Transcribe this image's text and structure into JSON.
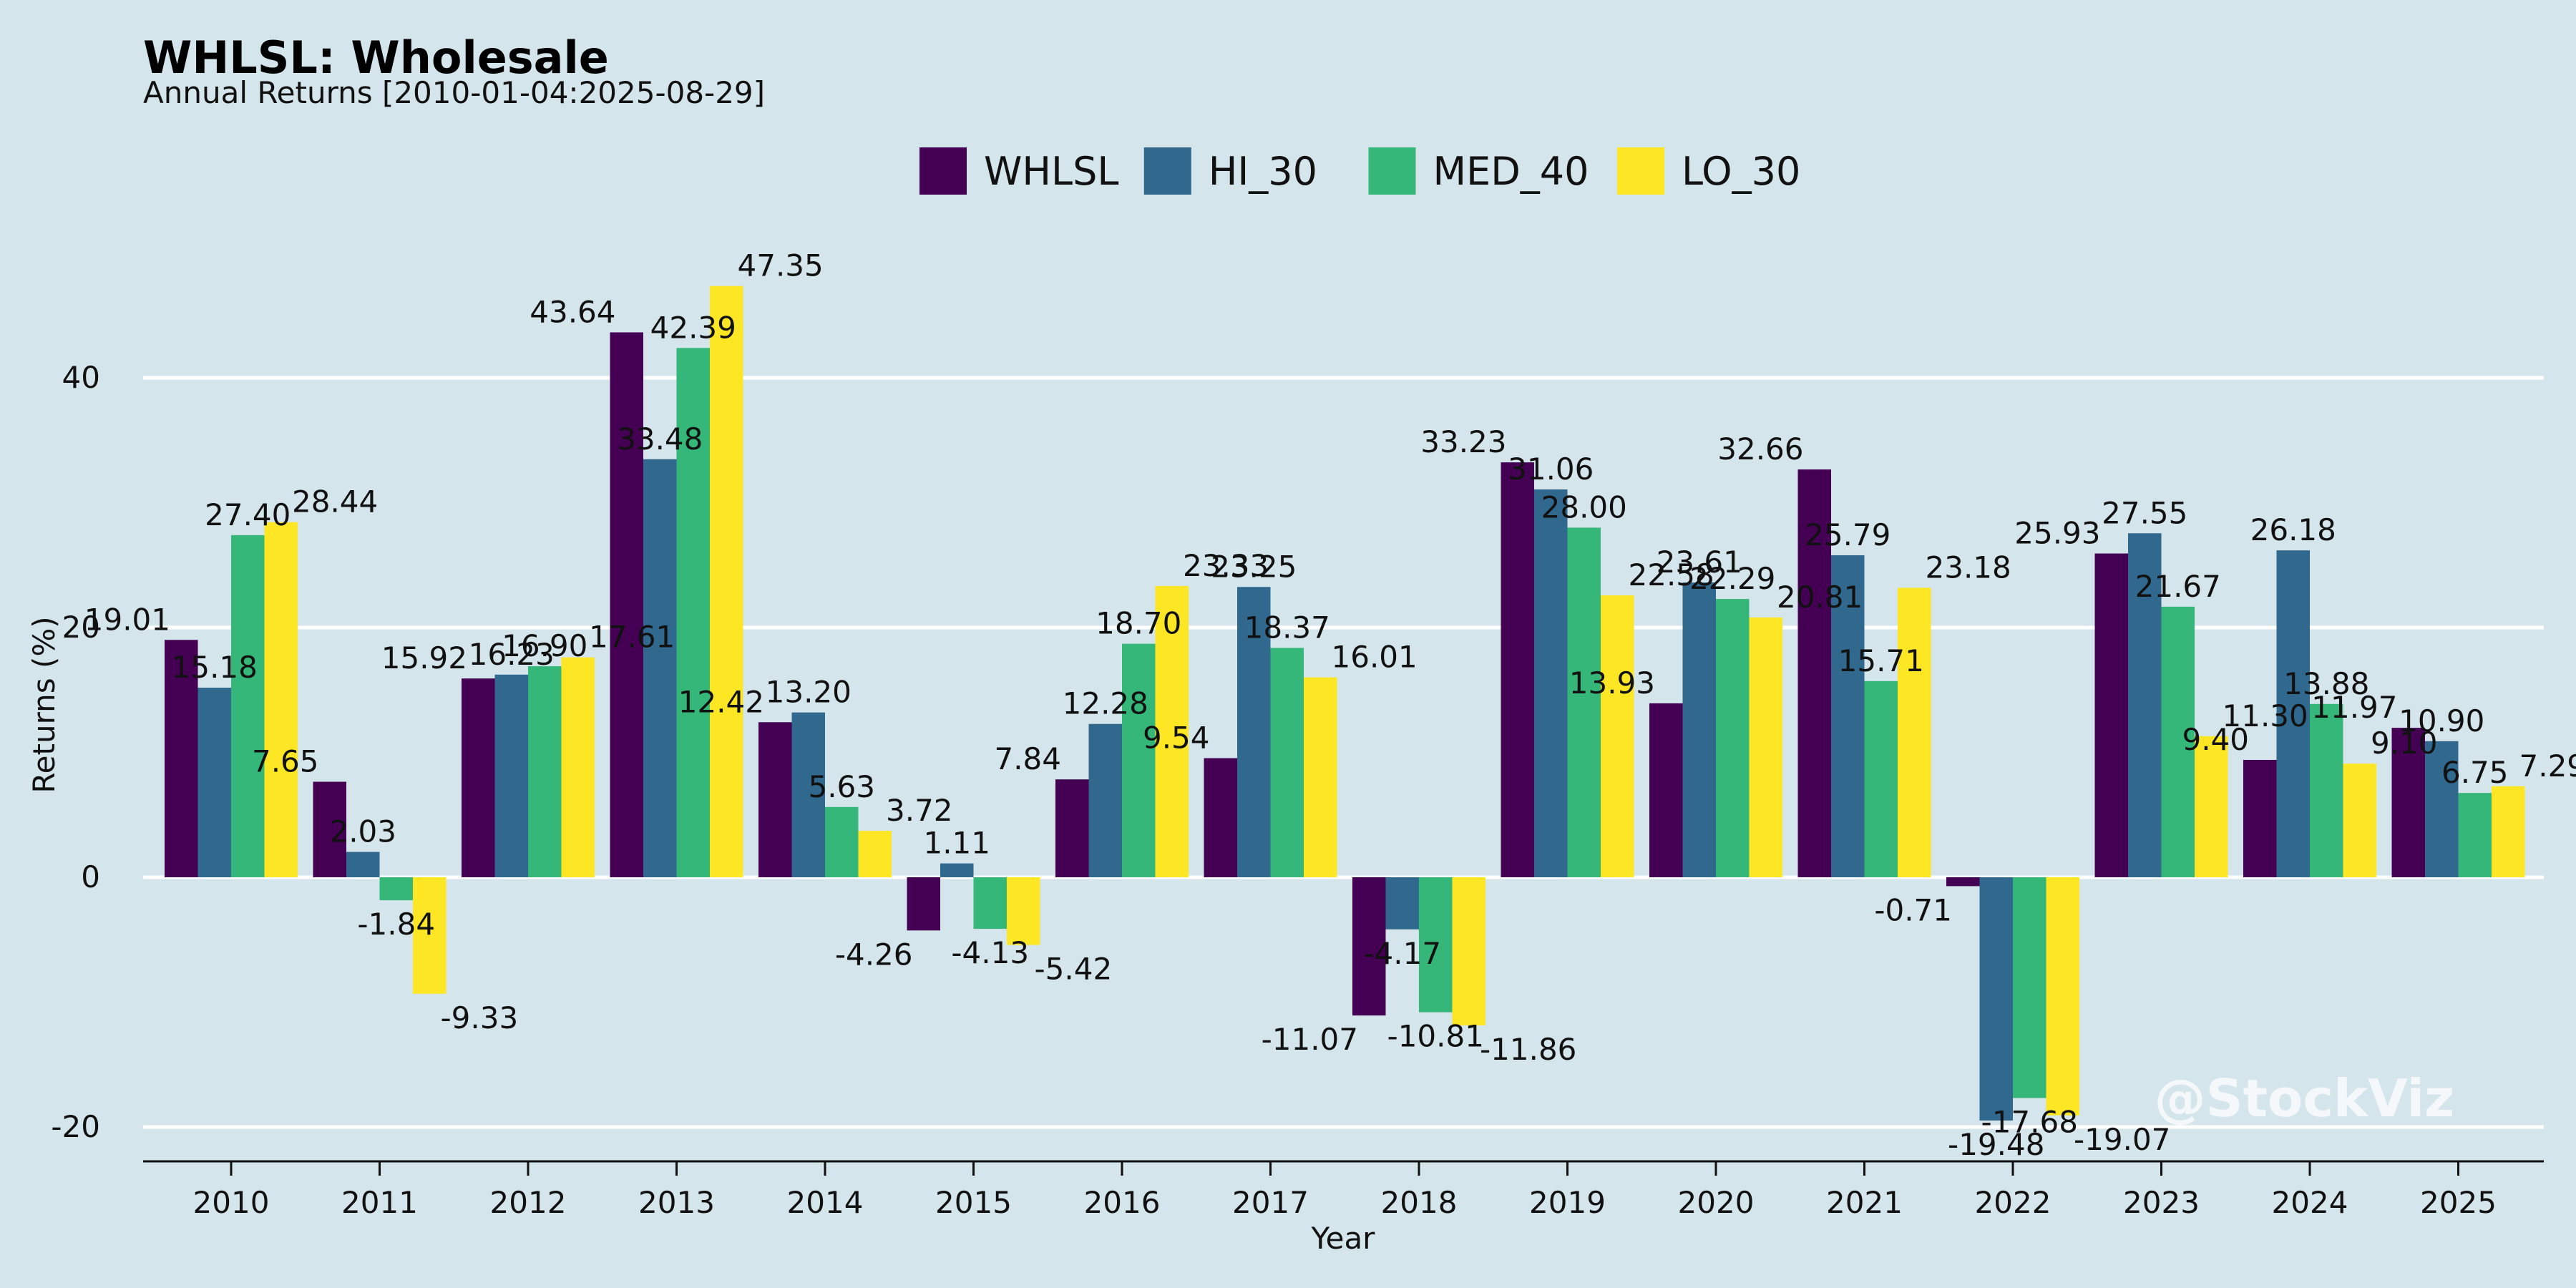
{
  "chart_data": {
    "type": "bar",
    "title": "WHLSL: Wholesale",
    "subtitle": "Annual Returns [2010-01-04:2025-08-29]",
    "xlabel": "Year",
    "ylabel": "Returns (%)",
    "ylim": [
      -23,
      58
    ],
    "yticks": [
      -20,
      0,
      20,
      40
    ],
    "grid": true,
    "legend_position": "top-center",
    "categories": [
      "2010",
      "2011",
      "2012",
      "2013",
      "2014",
      "2015",
      "2016",
      "2017",
      "2018",
      "2019",
      "2020",
      "2021",
      "2022",
      "2023",
      "2024",
      "2025"
    ],
    "series": [
      {
        "name": "WHLSL",
        "color": "#440154",
        "values": [
          19.01,
          7.65,
          15.92,
          43.64,
          12.42,
          -4.26,
          7.84,
          9.54,
          -11.07,
          33.23,
          13.93,
          32.66,
          -0.71,
          25.93,
          9.4,
          11.97
        ]
      },
      {
        "name": "HI_30",
        "color": "#31688e",
        "values": [
          15.18,
          2.03,
          16.23,
          33.48,
          13.2,
          1.11,
          12.28,
          23.25,
          -4.17,
          31.06,
          23.61,
          25.79,
          -19.48,
          27.55,
          26.18,
          10.9
        ]
      },
      {
        "name": "MED_40",
        "color": "#35b779",
        "values": [
          27.4,
          -1.84,
          16.9,
          42.39,
          5.63,
          -4.13,
          18.7,
          18.37,
          -10.81,
          28.0,
          22.29,
          15.71,
          -17.68,
          21.67,
          13.88,
          6.75
        ]
      },
      {
        "name": "LO_30",
        "color": "#fde725",
        "values": [
          28.44,
          -9.33,
          17.61,
          47.35,
          3.72,
          -5.42,
          23.33,
          16.01,
          -11.86,
          22.58,
          20.81,
          23.18,
          -19.07,
          11.3,
          9.1,
          7.29
        ]
      }
    ],
    "watermark": "@StockViz"
  }
}
